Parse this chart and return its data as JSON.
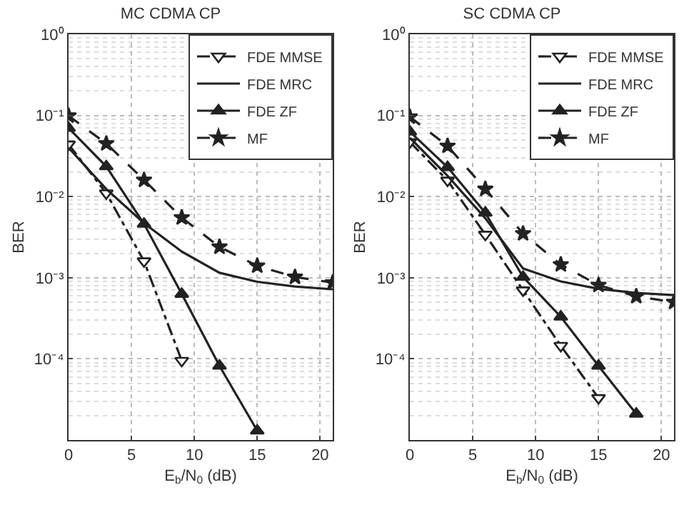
{
  "chart_data": [
    {
      "type": "line",
      "title": "MC CDMA CP",
      "xlabel": "E$_{b}$/N$_{0}$ (dB)",
      "ylabel": "BER",
      "log": "y",
      "grid": true,
      "legend": "top right",
      "xlim": [
        0,
        21
      ],
      "xticks": [
        0,
        5,
        10,
        15,
        20
      ],
      "ylim": [
        1e-05,
        1
      ],
      "yticks": [
        {
          "value": 1e-05,
          "label": null
        },
        {
          "value": 0.0001,
          "label": "10⁻⁴"
        },
        {
          "value": 0.001,
          "label": "10⁻³"
        },
        {
          "value": 0.01,
          "label": "10⁻²"
        },
        {
          "value": 0.1,
          "label": "10⁻¹"
        },
        {
          "value": 1,
          "label": "10⁰"
        }
      ],
      "series": [
        {
          "name": "FDE MMSE",
          "color": "#222222",
          "marker": "triangle-down",
          "line_style": "dashdot",
          "x": [
            0,
            3,
            6,
            9
          ],
          "values": [
            0.044,
            0.011,
            0.0016,
            9.5e-05
          ]
        },
        {
          "name": "FDE MRC",
          "color": "#222222",
          "marker": "none",
          "line_style": "solid",
          "x": [
            0,
            3,
            6,
            9,
            12,
            15,
            18,
            21
          ],
          "values": [
            0.04,
            0.0124,
            0.0047,
            0.0021,
            0.00115,
            0.00089,
            0.00078,
            0.00072
          ]
        },
        {
          "name": "FDE ZF",
          "color": "#222222",
          "marker": "triangle",
          "line_style": "solid",
          "x": [
            0,
            3,
            6,
            9,
            12,
            15
          ],
          "values": [
            0.07,
            0.0235,
            0.0046,
            0.00063,
            8.2e-05,
            1.3e-05
          ]
        },
        {
          "name": "MF",
          "color": "#222222",
          "marker": "star",
          "line_style": "dashed",
          "x": [
            0,
            3,
            6,
            9,
            12,
            15,
            18,
            21
          ],
          "values": [
            0.099,
            0.045,
            0.016,
            0.0055,
            0.0024,
            0.0014,
            0.00102,
            0.00087
          ]
        }
      ]
    },
    {
      "type": "line",
      "title": "SC CDMA CP",
      "xlabel": "E$_{b}$/N$_{0}$ (dB)",
      "ylabel": "BER",
      "log": "y",
      "grid": true,
      "legend": "top right",
      "xlim": [
        0,
        21
      ],
      "xticks": [
        0,
        5,
        10,
        15,
        20
      ],
      "ylim": [
        1e-05,
        1
      ],
      "yticks": [
        {
          "value": 1e-05,
          "label": null
        },
        {
          "value": 0.0001,
          "label": "10⁻⁴"
        },
        {
          "value": 0.001,
          "label": "10⁻³"
        },
        {
          "value": 0.01,
          "label": "10⁻²"
        },
        {
          "value": 0.1,
          "label": "10⁻¹"
        },
        {
          "value": 1,
          "label": "10⁰"
        }
      ],
      "series": [
        {
          "name": "FDE MMSE",
          "color": "#222222",
          "marker": "triangle-down",
          "line_style": "dashdot",
          "x": [
            0,
            3,
            6,
            9,
            12,
            15
          ],
          "values": [
            0.047,
            0.0158,
            0.0034,
            0.0007,
            0.000145,
            3.3e-05
          ]
        },
        {
          "name": "FDE MRC",
          "color": "#222222",
          "marker": "none",
          "line_style": "solid",
          "x": [
            0,
            3,
            6,
            9,
            12,
            15,
            18,
            21
          ],
          "values": [
            0.053,
            0.018,
            0.0054,
            0.0013,
            0.0009,
            0.00073,
            0.00065,
            0.00061
          ]
        },
        {
          "name": "FDE ZF",
          "color": "#222222",
          "marker": "triangle",
          "line_style": "solid",
          "x": [
            0,
            3,
            6,
            9,
            12,
            15,
            18
          ],
          "values": [
            0.063,
            0.023,
            0.0063,
            0.00102,
            0.00033,
            8.2e-05,
            2.1e-05
          ]
        },
        {
          "name": "MF",
          "color": "#222222",
          "marker": "star",
          "line_style": "dashed",
          "x": [
            0,
            3,
            6,
            9,
            12,
            15,
            18,
            21
          ],
          "values": [
            0.096,
            0.042,
            0.0124,
            0.0035,
            0.00145,
            0.00081,
            0.00059,
            0.0005
          ]
        }
      ]
    }
  ]
}
